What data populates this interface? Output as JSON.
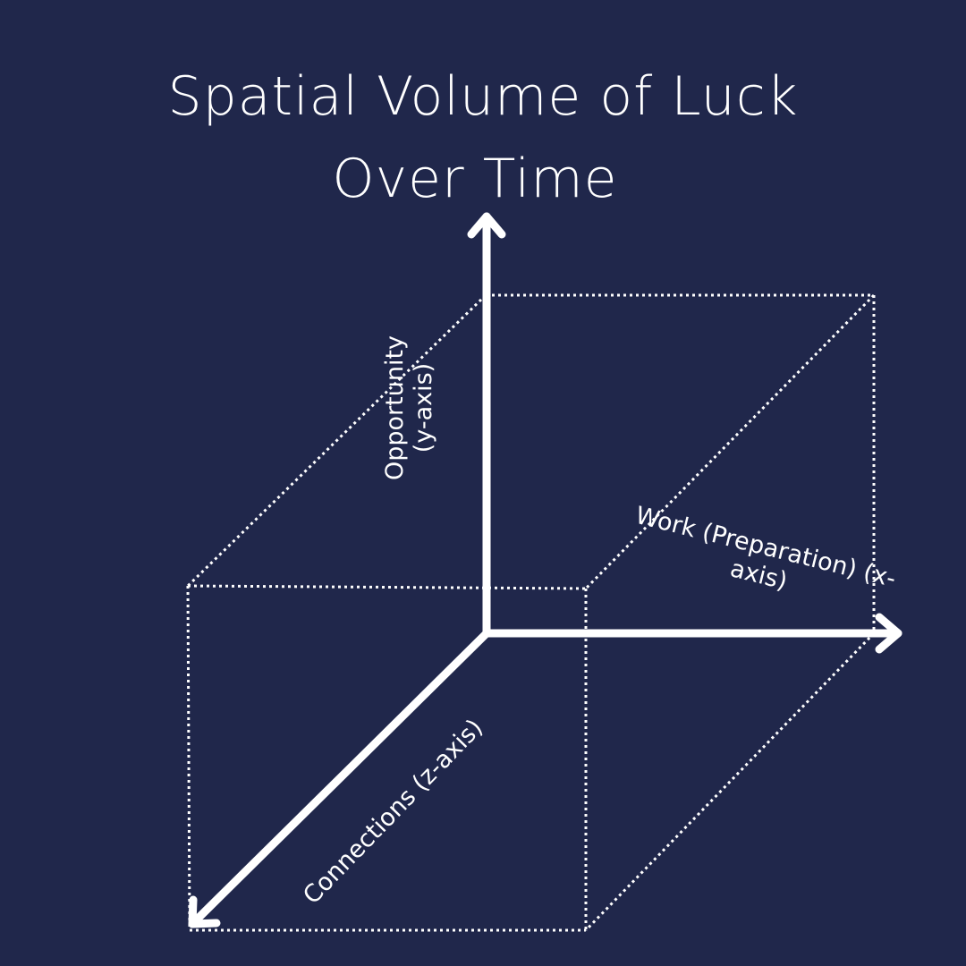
{
  "title": {
    "line1": "Spatial Volume of Luck",
    "line2": "Over Time"
  },
  "axes": {
    "y": {
      "line1": "Opportunity",
      "line2": "(y-axis)"
    },
    "x": {
      "line1": "Work (Preparation) (x-",
      "line2": "axis)"
    },
    "z": {
      "line1": "Connections (z-axis)"
    }
  },
  "colors": {
    "background": "#20274b",
    "foreground": "#ffffff"
  }
}
